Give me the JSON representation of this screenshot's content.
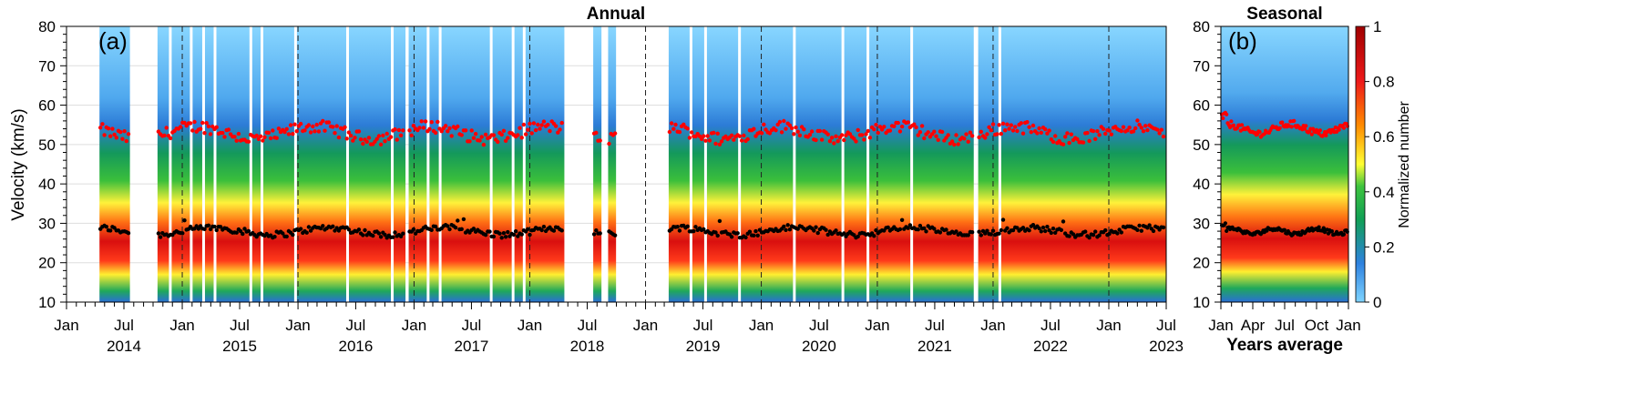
{
  "chart_data": [
    {
      "type": "heatmap",
      "panel_label": "(a)",
      "title": "Annual",
      "ylabel": "Velocity (km/s)",
      "ylim": [
        10,
        80
      ],
      "yticks": [
        "10",
        "20",
        "30",
        "40",
        "50",
        "60",
        "70",
        "80"
      ],
      "xlim": [
        "2014-01-01",
        "2023-07-01"
      ],
      "month_ticks": [
        "Jan",
        "Jul",
        "Jan",
        "Jul",
        "Jan",
        "Jul",
        "Jan",
        "Jul",
        "Jan",
        "Jul",
        "Jan",
        "Jul",
        "Jan",
        "Jul",
        "Jan",
        "Jul",
        "Jan",
        "Jul",
        "Jan",
        "Jul"
      ],
      "year_labels": [
        "2014",
        "2015",
        "2016",
        "2017",
        "2018",
        "2019",
        "2020",
        "2021",
        "2022",
        "2023"
      ],
      "data_coverage": [
        [
          "2014-04-15",
          "2014-07-20"
        ],
        [
          "2014-10-15",
          "2016-12-05"
        ],
        [
          "2016-12-15",
          "2018-04-20"
        ],
        [
          "2018-07-20",
          "2018-08-15"
        ],
        [
          "2018-09-05",
          "2018-09-30"
        ],
        [
          "2019-03-15",
          "2021-11-01"
        ],
        [
          "2021-11-15",
          "2023-07-01"
        ]
      ],
      "year_boundary_lines": [
        "2015-01-01",
        "2016-01-01",
        "2017-01-01",
        "2018-01-01",
        "2019-01-01",
        "2020-01-01",
        "2021-01-01",
        "2022-01-01",
        "2023-01-01"
      ],
      "series": [
        {
          "color": "#ff0000",
          "marker": "dot",
          "approx_level_kms": 53,
          "range_kms": [
            48,
            57
          ]
        },
        {
          "color": "#000000",
          "marker": "dot",
          "approx_level_kms": 28,
          "range_kms": [
            26,
            32
          ]
        }
      ],
      "distribution_kms": {
        "peak": 29,
        "mid_band": [
          38,
          45
        ],
        "upper_band": [
          52,
          62
        ]
      },
      "grid": true
    },
    {
      "type": "heatmap",
      "panel_label": "(b)",
      "title": "Seasonal",
      "xlabel": "Years average",
      "ylim": [
        10,
        80
      ],
      "yticks": [
        "10",
        "20",
        "30",
        "40",
        "50",
        "60",
        "70",
        "80"
      ],
      "xticks": [
        "Jan",
        "Apr",
        "Jul",
        "Oct",
        "Jan"
      ],
      "series": [
        {
          "color": "#ff0000",
          "marker": "dot",
          "approx_level_kms": 54,
          "range_kms": [
            52,
            58
          ]
        },
        {
          "color": "#000000",
          "marker": "dot",
          "approx_level_kms": 28,
          "range_kms": [
            27,
            31
          ]
        }
      ],
      "grid": true
    }
  ],
  "colorbar": {
    "label": "Normalized number",
    "range": [
      0,
      1
    ],
    "ticks": [
      "0",
      "0.2",
      "0.4",
      "0.6",
      "0.8",
      "1"
    ],
    "colors": [
      "#7fd4ff",
      "#2e82e0",
      "#11a055",
      "#3ec43e",
      "#ffff33",
      "#ff8c00",
      "#ee1a1a",
      "#a00000"
    ]
  }
}
